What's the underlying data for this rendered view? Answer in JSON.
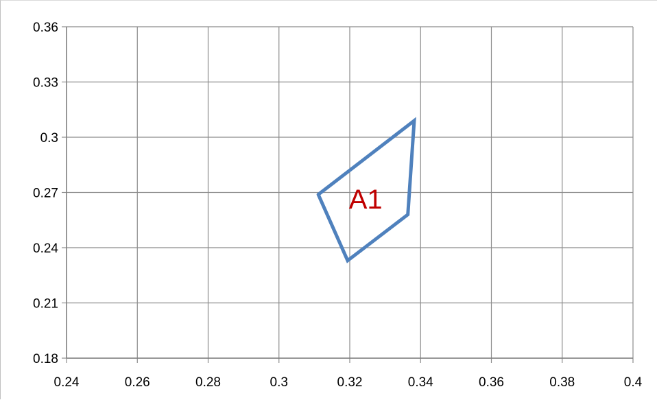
{
  "chart_data": {
    "type": "scatter",
    "title": "",
    "xlabel": "",
    "ylabel": "",
    "xlim": [
      0.24,
      0.4
    ],
    "ylim": [
      0.18,
      0.36
    ],
    "x_ticks": [
      "0.24",
      "0.26",
      "0.28",
      "0.3",
      "0.32",
      "0.34",
      "0.36",
      "0.38",
      "0.4"
    ],
    "y_ticks": [
      "0.18",
      "0.21",
      "0.24",
      "0.27",
      "0.3",
      "0.33",
      "0.36"
    ],
    "grid": true,
    "series": [
      {
        "color": "#4f81bd",
        "closed": true,
        "points": [
          {
            "x": 0.3111,
            "y": 0.2689
          },
          {
            "x": 0.3382,
            "y": 0.309
          },
          {
            "x": 0.3364,
            "y": 0.258
          },
          {
            "x": 0.3194,
            "y": 0.233
          },
          {
            "x": 0.3111,
            "y": 0.2689
          }
        ]
      }
    ],
    "annotations": [
      {
        "text": "A1",
        "x": 0.3245,
        "y": 0.2665,
        "color": "#c00000"
      }
    ]
  }
}
